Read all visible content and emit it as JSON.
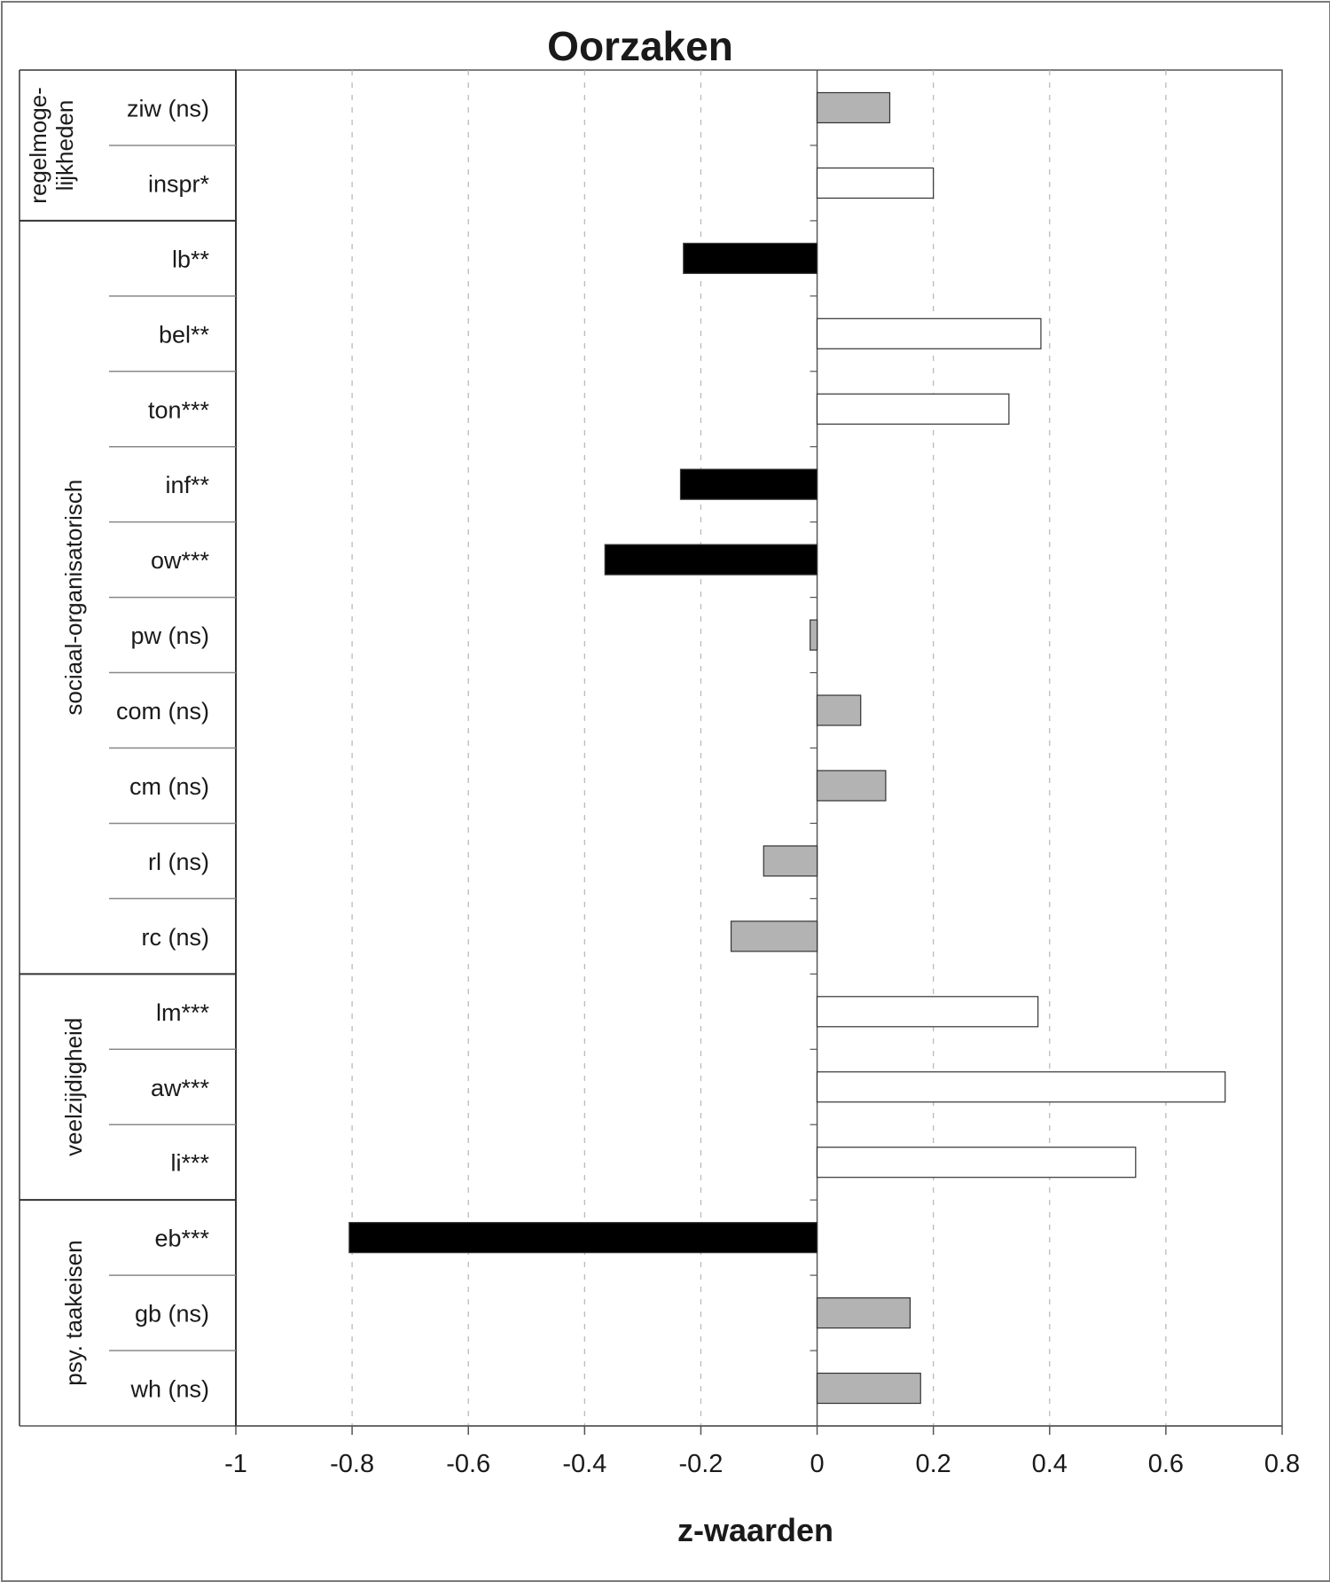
{
  "chart_data": {
    "type": "bar",
    "orientation": "horizontal",
    "title": "Oorzaken",
    "xlabel": "z-waarden",
    "xlim": [
      -1,
      0.8
    ],
    "xticks": [
      -1,
      -0.8,
      -0.6,
      -0.4,
      -0.2,
      0,
      0.2,
      0.4,
      0.6,
      0.8
    ],
    "xtick_labels": [
      "-1",
      "-0.8",
      "-0.6",
      "-0.4",
      "-0.2",
      "0",
      "0.2",
      "0.4",
      "0.6",
      "0.8"
    ],
    "grid": "vertical dashed",
    "fill_colors": {
      "positive_significant": "#ffffff",
      "negative_significant": "#000000",
      "not_significant": "#b3b3b3"
    },
    "groups": [
      {
        "label": "regelmoge-\nlijkheden",
        "categories": [
          "ziw (ns)",
          "inspr*"
        ]
      },
      {
        "label": "sociaal-organisatorisch",
        "categories": [
          "lb**",
          "bel**",
          "ton***",
          "inf**",
          "ow***",
          "pw (ns)",
          "com (ns)",
          "cm (ns)",
          "rl (ns)",
          "rc (ns)"
        ]
      },
      {
        "label": "veelzijdigheid",
        "categories": [
          "lm***",
          "aw***",
          "li***"
        ]
      },
      {
        "label": "psy. taakeisen",
        "categories": [
          "eb***",
          "gb (ns)",
          "wh (ns)"
        ]
      }
    ],
    "categories": [
      "ziw (ns)",
      "inspr*",
      "lb**",
      "bel**",
      "ton***",
      "inf**",
      "ow***",
      "pw (ns)",
      "com (ns)",
      "cm (ns)",
      "rl (ns)",
      "rc (ns)",
      "lm***",
      "aw***",
      "li***",
      "eb***",
      "gb (ns)",
      "wh (ns)"
    ],
    "values": [
      0.125,
      0.2,
      -0.23,
      0.385,
      0.33,
      -0.235,
      -0.365,
      -0.012,
      0.075,
      0.118,
      -0.092,
      -0.148,
      0.38,
      0.702,
      0.548,
      -0.805,
      0.16,
      0.178
    ],
    "significance": [
      "ns",
      "sig",
      "sig",
      "sig",
      "sig",
      "sig",
      "sig",
      "ns",
      "ns",
      "ns",
      "ns",
      "ns",
      "sig",
      "sig",
      "sig",
      "sig",
      "ns",
      "ns"
    ]
  }
}
